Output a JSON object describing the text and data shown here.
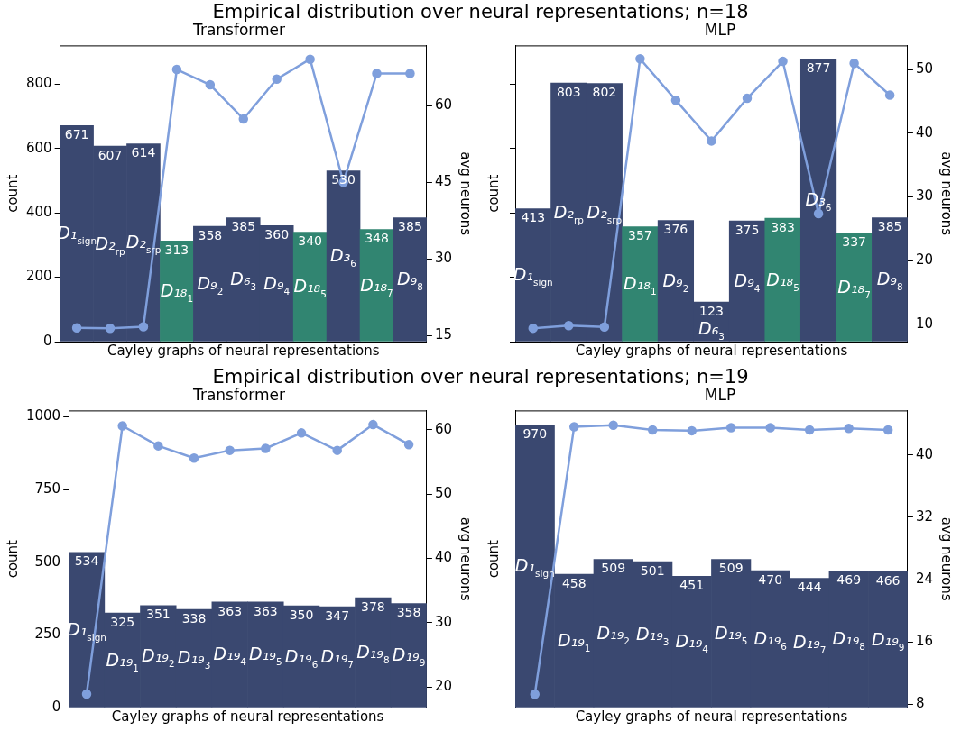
{
  "chart_data": [
    {
      "type": "bar",
      "title": "Empirical distribution over neural representations; n=18",
      "subtitle": "Transformer",
      "xlabel": "Cayley graphs of neural representations",
      "ylabel": "count",
      "y2label": "avg neurons",
      "categories": [
        "D₁$_{sign}$",
        "D₂$_{rp}$",
        "D₂$_{srp}$",
        "D₁₈$_{1}$",
        "D₉$_{2}$",
        "D₆$_{3}$",
        "D₉$_{4}$",
        "D₁₈$_{5}$",
        "D₃$_{6}$",
        "D₁₈$_{7}$",
        "D₉$_{8}$"
      ],
      "series": [
        {
          "colors": [
            "#3a4870",
            "#3a4870",
            "#3a4870",
            "#318571",
            "#3a4870",
            "#3a4870",
            "#3a4870",
            "#318571",
            "#3a4870",
            "#318571",
            "#3a4870"
          ],
          "values": [
            671,
            607,
            614,
            313,
            358,
            385,
            360,
            340,
            530,
            348,
            385
          ],
          "value_labels": [
            "671",
            "607",
            "614",
            "313",
            "358",
            "385",
            "360",
            "340",
            "530",
            "348",
            "385"
          ]
        },
        {
          "type": "line",
          "axis": "y2",
          "color": "#7f9fdc",
          "values": [
            16.5,
            16.4,
            16.7,
            67.1,
            64.1,
            57.4,
            65.2,
            69.1,
            45.0,
            66.3,
            66.3
          ]
        }
      ],
      "ylim": [
        0,
        920
      ],
      "yticks": [
        0,
        200,
        400,
        600,
        800
      ],
      "y2lim": [
        13.8,
        71.8
      ],
      "y2ticks": [
        15,
        30,
        45,
        60
      ],
      "grid": false,
      "legend": false,
      "marker": "circle",
      "line_style": "solid"
    },
    {
      "type": "bar",
      "subtitle": "MLP",
      "xlabel": "Cayley graphs of neural representations",
      "ylabel": "count",
      "y2label": "avg neurons",
      "categories": [
        "D₁$_{sign}$",
        "D₂$_{rp}$",
        "D₂$_{srp}$",
        "D₁₈$_{1}$",
        "D₉$_{2}$",
        "D₆$_{3}$",
        "D₉$_{4}$",
        "D₁₈$_{5}$",
        "D₃$_{6}$",
        "D₁₈$_{7}$",
        "D₉$_{8}$"
      ],
      "series": [
        {
          "colors": [
            "#3a4870",
            "#3a4870",
            "#3a4870",
            "#318571",
            "#3a4870",
            "#3a4870",
            "#3a4870",
            "#318571",
            "#3a4870",
            "#318571",
            "#3a4870"
          ],
          "values": [
            413,
            803,
            802,
            357,
            376,
            123,
            375,
            383,
            877,
            337,
            385
          ],
          "value_labels": [
            "413",
            "803",
            "802",
            "357",
            "376",
            "123",
            "375",
            "383",
            "877",
            "337",
            "385"
          ]
        },
        {
          "type": "line",
          "axis": "y2",
          "color": "#7f9fdc",
          "values": [
            9.4,
            9.8,
            9.6,
            51.7,
            45.2,
            38.8,
            45.5,
            51.3,
            27.4,
            51.0,
            46.0
          ]
        }
      ],
      "ylim": [
        0,
        920
      ],
      "yticks": [
        {
          "value": 0,
          "label": null
        },
        {
          "value": 200,
          "label": null
        },
        {
          "value": 400,
          "label": null
        },
        {
          "value": 600,
          "label": null
        },
        {
          "value": 800,
          "label": null
        }
      ],
      "y2lim": [
        7.3,
        53.8
      ],
      "y2ticks": [
        10,
        20,
        30,
        40,
        50
      ],
      "grid": false,
      "legend": false,
      "marker": "circle",
      "line_style": "solid"
    },
    {
      "type": "bar",
      "title": "Empirical distribution over neural representations; n=19",
      "subtitle": "Transformer",
      "xlabel": "Cayley graphs of neural representations",
      "ylabel": "count",
      "y2label": "avg neurons",
      "categories": [
        "D₁$_{sign}$",
        "D₁₉$_{1}$",
        "D₁₉$_{2}$",
        "D₁₉$_{3}$",
        "D₁₉$_{4}$",
        "D₁₉$_{5}$",
        "D₁₉$_{6}$",
        "D₁₉$_{7}$",
        "D₁₉$_{8}$",
        "D₁₉$_{9}$"
      ],
      "series": [
        {
          "color": "#3a4870",
          "values": [
            534,
            325,
            351,
            338,
            363,
            363,
            350,
            347,
            378,
            358
          ],
          "value_labels": [
            "534",
            "325",
            "351",
            "338",
            "363",
            "363",
            "350",
            "347",
            "378",
            "358"
          ]
        },
        {
          "type": "line",
          "axis": "y2",
          "color": "#7f9fdc",
          "values": [
            18.9,
            60.6,
            57.5,
            55.6,
            56.8,
            57.1,
            59.5,
            56.8,
            60.8,
            57.7
          ]
        }
      ],
      "ylim": [
        0,
        1022
      ],
      "yticks": [
        0,
        250,
        500,
        750,
        1000
      ],
      "y2lim": [
        16.8,
        63.0
      ],
      "y2ticks": [
        20,
        30,
        40,
        50,
        60
      ],
      "grid": false,
      "legend": false,
      "marker": "circle",
      "line_style": "solid"
    },
    {
      "type": "bar",
      "subtitle": "MLP",
      "xlabel": "Cayley graphs of neural representations",
      "ylabel": "count",
      "y2label": "avg neurons",
      "categories": [
        "D₁$_{sign}$",
        "D₁₉$_{1}$",
        "D₁₉$_{2}$",
        "D₁₉$_{3}$",
        "D₁₉$_{4}$",
        "D₁₉$_{5}$",
        "D₁₉$_{6}$",
        "D₁₉$_{7}$",
        "D₁₉$_{8}$",
        "D₁₉$_{9}$"
      ],
      "series": [
        {
          "color": "#3a4870",
          "values": [
            970,
            458,
            509,
            501,
            451,
            509,
            470,
            444,
            469,
            466
          ],
          "value_labels": [
            "970",
            "458",
            "509",
            "501",
            "451",
            "509",
            "470",
            "444",
            "469",
            "466"
          ]
        },
        {
          "type": "line",
          "axis": "y2",
          "color": "#7f9fdc",
          "values": [
            9.3,
            43.6,
            43.8,
            43.2,
            43.1,
            43.5,
            43.5,
            43.2,
            43.4,
            43.2
          ]
        }
      ],
      "ylim": [
        0,
        1020
      ],
      "yticks": [
        {
          "value": 0,
          "label": null
        },
        {
          "value": 250,
          "label": null
        },
        {
          "value": 500,
          "label": null
        },
        {
          "value": 750,
          "label": null
        },
        {
          "value": 1000,
          "label": null
        }
      ],
      "y2lim": [
        7.6,
        45.7
      ],
      "y2ticks": [
        8,
        16,
        24,
        32,
        40
      ],
      "grid": false,
      "legend": false,
      "marker": "circle",
      "line_style": "solid"
    }
  ]
}
